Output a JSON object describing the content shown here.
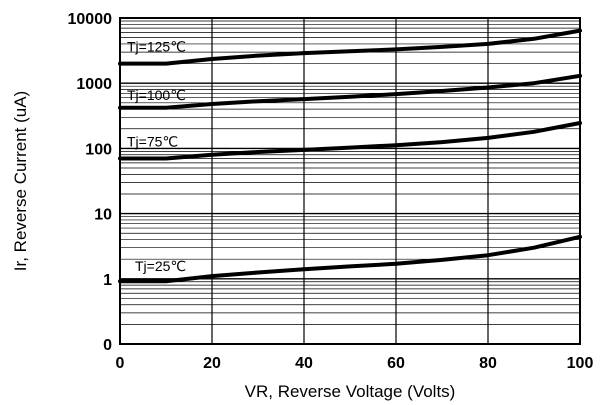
{
  "chart_data": {
    "type": "line",
    "xlabel": "VR, Reverse Voltage (Volts)",
    "ylabel": "Ir, Reverse Current (uA)",
    "xlim": [
      0,
      100
    ],
    "ylim": [
      0,
      10000
    ],
    "y_scale": "log",
    "x_ticks": [
      "0",
      "20",
      "40",
      "60",
      "80",
      "100"
    ],
    "y_ticks": [
      "0",
      "1",
      "10",
      "100",
      "1000",
      "10000"
    ],
    "grid": true,
    "series": [
      {
        "name": "Tj=125℃",
        "x": [
          0,
          10,
          20,
          30,
          40,
          50,
          60,
          70,
          80,
          90,
          100
        ],
        "y": [
          2000,
          2000,
          2350,
          2650,
          2900,
          3100,
          3300,
          3600,
          4000,
          4800,
          6400
        ]
      },
      {
        "name": "Tj=100℃",
        "x": [
          0,
          10,
          20,
          30,
          40,
          50,
          60,
          70,
          80,
          90,
          100
        ],
        "y": [
          420,
          420,
          480,
          530,
          570,
          620,
          680,
          760,
          860,
          1000,
          1300
        ]
      },
      {
        "name": "Tj=75℃",
        "x": [
          0,
          10,
          20,
          30,
          40,
          50,
          60,
          70,
          80,
          90,
          100
        ],
        "y": [
          70,
          70,
          80,
          88,
          95,
          103,
          112,
          125,
          145,
          180,
          245
        ]
      },
      {
        "name": "Tj=25℃",
        "x": [
          0,
          10,
          20,
          30,
          40,
          50,
          60,
          70,
          80,
          90,
          100
        ],
        "y": [
          0.92,
          0.92,
          1.1,
          1.25,
          1.4,
          1.55,
          1.7,
          1.95,
          2.3,
          3.0,
          4.4
        ]
      }
    ]
  }
}
